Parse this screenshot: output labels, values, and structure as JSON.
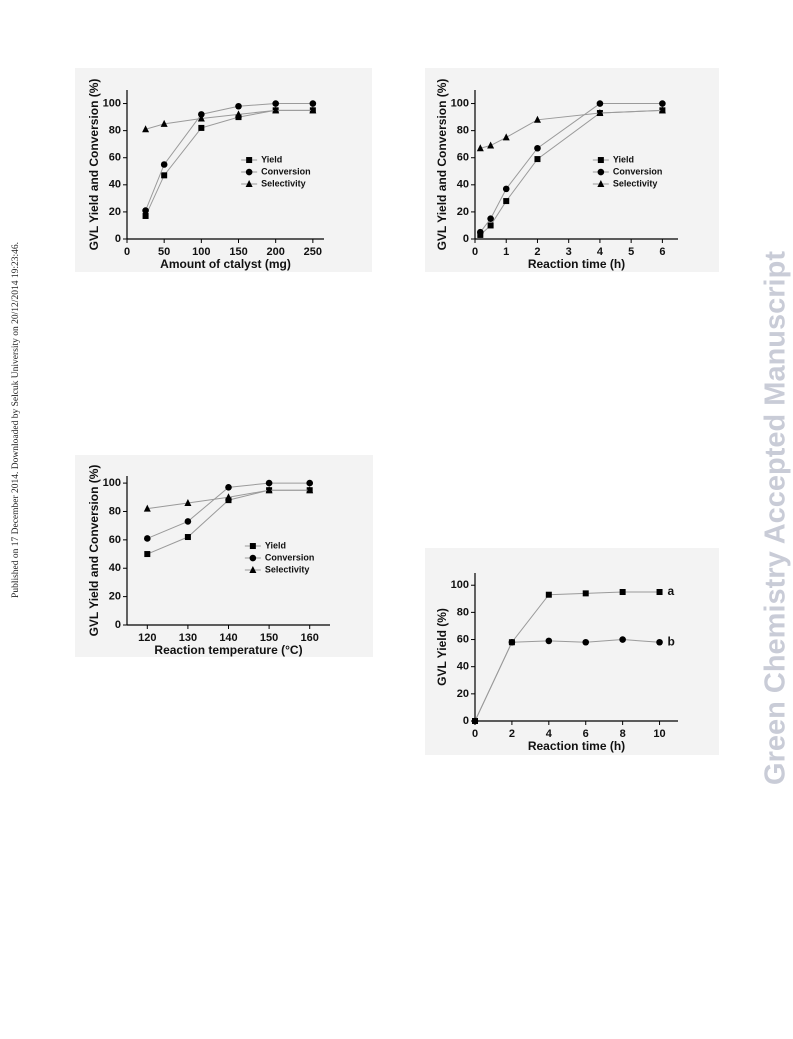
{
  "page": {
    "side_note": "Published on 17 December 2014. Downloaded by Selcuk University on 20/12/2014 19:23:46.",
    "watermark": "Green Chemistry Accepted Manuscript"
  },
  "chart_data": [
    {
      "type": "line",
      "xlabel": "Amount of ctalyst (mg)",
      "ylabel": "GVL Yield and Conversion (%)",
      "x": [
        25,
        50,
        100,
        150,
        200,
        250
      ],
      "xlim": [
        0,
        265
      ],
      "xticks": [
        0,
        50,
        100,
        150,
        200,
        250
      ],
      "ylim": [
        0,
        110
      ],
      "yticks": [
        0,
        20,
        40,
        60,
        80,
        100
      ],
      "legend": "center right",
      "series": [
        {
          "name": "Yield",
          "color": "#000000",
          "marker": "square",
          "values": [
            17,
            47,
            82,
            90,
            95,
            95
          ]
        },
        {
          "name": "Conversion",
          "color": "#000000",
          "marker": "circle",
          "values": [
            21,
            55,
            92,
            98,
            100,
            100
          ]
        },
        {
          "name": "Selectivity",
          "color": "#000000",
          "marker": "triangle",
          "values": [
            81,
            85,
            89,
            92,
            95,
            95
          ]
        }
      ]
    },
    {
      "type": "line",
      "xlabel": "Reaction time (h)",
      "ylabel": "GVL Yield and Conversion (%)",
      "x": [
        0.17,
        0.5,
        1,
        2,
        4,
        6
      ],
      "xlim": [
        0,
        6.5
      ],
      "xticks": [
        0,
        1,
        2,
        3,
        4,
        5,
        6
      ],
      "ylim": [
        0,
        110
      ],
      "yticks": [
        0,
        20,
        40,
        60,
        80,
        100
      ],
      "legend": "center right",
      "series": [
        {
          "name": "Yield",
          "color": "#000000",
          "marker": "square",
          "values": [
            3,
            10,
            28,
            59,
            93,
            95
          ]
        },
        {
          "name": "Conversion",
          "color": "#000000",
          "marker": "circle",
          "values": [
            5,
            15,
            37,
            67,
            100,
            100
          ]
        },
        {
          "name": "Selectivity",
          "color": "#000000",
          "marker": "triangle",
          "values": [
            67,
            69,
            75,
            88,
            93,
            95
          ]
        }
      ]
    },
    {
      "type": "line",
      "xlabel": "Reaction temperature (°C)",
      "ylabel": "GVL Yield and Conversion (%)",
      "x": [
        120,
        130,
        140,
        150,
        160
      ],
      "xlim": [
        115,
        165
      ],
      "xticks": [
        120,
        130,
        140,
        150,
        160
      ],
      "ylim": [
        0,
        105
      ],
      "yticks": [
        0,
        20,
        40,
        60,
        80,
        100
      ],
      "legend": "center right",
      "series": [
        {
          "name": "Yield",
          "color": "#000000",
          "marker": "square",
          "values": [
            50,
            62,
            88,
            95,
            95
          ]
        },
        {
          "name": "Conversion",
          "color": "#000000",
          "marker": "circle",
          "values": [
            61,
            73,
            97,
            100,
            100
          ]
        },
        {
          "name": "Selectivity",
          "color": "#000000",
          "marker": "triangle",
          "values": [
            82,
            86,
            90,
            95,
            95
          ]
        }
      ]
    },
    {
      "type": "line",
      "xlabel": "Reaction time (h)",
      "ylabel": "GVL Yield (%)",
      "x": [
        0,
        2,
        4,
        6,
        8,
        10
      ],
      "xlim": [
        0,
        11
      ],
      "xticks": [
        0,
        2,
        4,
        6,
        8,
        10
      ],
      "ylim": [
        0,
        109
      ],
      "yticks": [
        0,
        20,
        40,
        60,
        80,
        100
      ],
      "end_labels": true,
      "series": [
        {
          "name": "a",
          "color": "#000000",
          "marker": "square",
          "values": [
            0,
            58,
            93,
            94,
            95,
            95
          ]
        },
        {
          "name": "b",
          "color": "#000000",
          "marker": "circle",
          "values": [
            0,
            58,
            59,
            58,
            60,
            58
          ]
        }
      ]
    }
  ]
}
